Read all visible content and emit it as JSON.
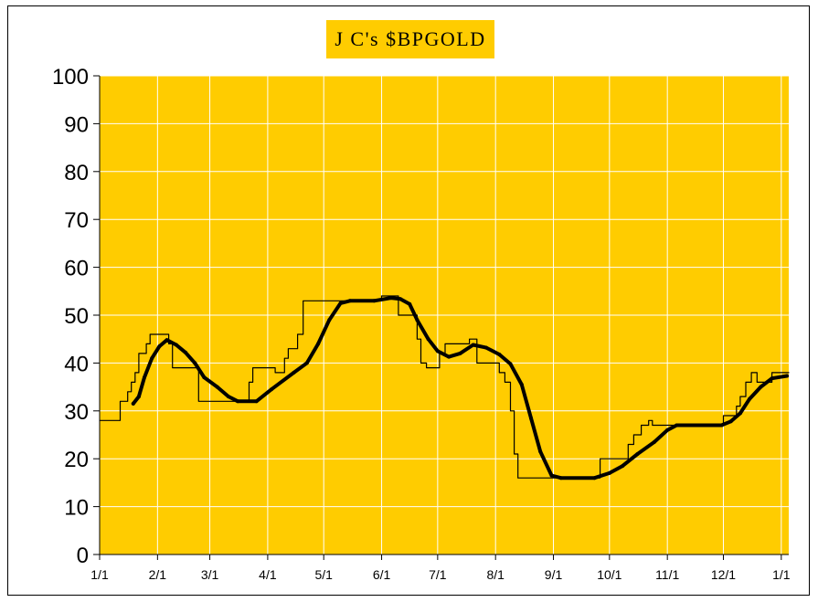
{
  "chart_data": {
    "type": "line",
    "title": "J C's $BPGOLD",
    "xlabel": "",
    "ylabel": "",
    "ylim": [
      0,
      100
    ],
    "xlim": [
      "2023-01-01",
      "2024-01-05"
    ],
    "yticks": [
      0,
      10,
      20,
      30,
      40,
      50,
      60,
      70,
      80,
      90,
      100
    ],
    "xticks": [
      {
        "date": "2023-01-01",
        "label": "1/1"
      },
      {
        "date": "2023-02-01",
        "label": "2/1"
      },
      {
        "date": "2023-03-01",
        "label": "3/1"
      },
      {
        "date": "2023-04-01",
        "label": "4/1"
      },
      {
        "date": "2023-05-01",
        "label": "5/1"
      },
      {
        "date": "2023-06-01",
        "label": "6/1"
      },
      {
        "date": "2023-07-01",
        "label": "7/1"
      },
      {
        "date": "2023-08-01",
        "label": "8/1"
      },
      {
        "date": "2023-09-01",
        "label": "9/1"
      },
      {
        "date": "2023-10-01",
        "label": "10/1"
      },
      {
        "date": "2023-11-01",
        "label": "11/1"
      },
      {
        "date": "2023-12-01",
        "label": "12/1"
      },
      {
        "date": "2024-01-01",
        "label": "1/1"
      }
    ],
    "grid": true,
    "legend": "none",
    "colors": {
      "plot_bg": "#ffcc00",
      "grid": "#ffffff",
      "line": "#000000",
      "title_bg": "#ffcc00"
    },
    "series": [
      {
        "style": "thin",
        "step": true,
        "points": [
          [
            "2023-01-01",
            28
          ],
          [
            "2023-01-11",
            28
          ],
          [
            "2023-01-12",
            32
          ],
          [
            "2023-01-15",
            32
          ],
          [
            "2023-01-16",
            34
          ],
          [
            "2023-01-18",
            36
          ],
          [
            "2023-01-20",
            38
          ],
          [
            "2023-01-22",
            42
          ],
          [
            "2023-01-25",
            42
          ],
          [
            "2023-01-26",
            44
          ],
          [
            "2023-01-28",
            46
          ],
          [
            "2023-02-05",
            46
          ],
          [
            "2023-02-07",
            44
          ],
          [
            "2023-02-09",
            39
          ],
          [
            "2023-02-20",
            39
          ],
          [
            "2023-02-23",
            32
          ],
          [
            "2023-03-20",
            32
          ],
          [
            "2023-03-22",
            36
          ],
          [
            "2023-03-24",
            39
          ],
          [
            "2023-04-01",
            39
          ],
          [
            "2023-04-05",
            38
          ],
          [
            "2023-04-10",
            41
          ],
          [
            "2023-04-12",
            43
          ],
          [
            "2023-04-15",
            43
          ],
          [
            "2023-04-17",
            46
          ],
          [
            "2023-04-20",
            53
          ],
          [
            "2023-05-31",
            53
          ],
          [
            "2023-06-01",
            54
          ],
          [
            "2023-06-08",
            54
          ],
          [
            "2023-06-10",
            50
          ],
          [
            "2023-06-18",
            50
          ],
          [
            "2023-06-20",
            45
          ],
          [
            "2023-06-22",
            40
          ],
          [
            "2023-06-25",
            39
          ],
          [
            "2023-06-28",
            39
          ],
          [
            "2023-07-02",
            42
          ],
          [
            "2023-07-05",
            44
          ],
          [
            "2023-07-16",
            44
          ],
          [
            "2023-07-18",
            45
          ],
          [
            "2023-07-22",
            40
          ],
          [
            "2023-07-30",
            40
          ],
          [
            "2023-08-03",
            38
          ],
          [
            "2023-08-06",
            36
          ],
          [
            "2023-08-09",
            30
          ],
          [
            "2023-08-11",
            21
          ],
          [
            "2023-08-13",
            16
          ],
          [
            "2023-09-25",
            16
          ],
          [
            "2023-09-26",
            20
          ],
          [
            "2023-10-09",
            20
          ],
          [
            "2023-10-11",
            23
          ],
          [
            "2023-10-14",
            25
          ],
          [
            "2023-10-18",
            27
          ],
          [
            "2023-10-22",
            28
          ],
          [
            "2023-10-24",
            27
          ],
          [
            "2023-11-30",
            27
          ],
          [
            "2023-12-01",
            29
          ],
          [
            "2023-12-06",
            29
          ],
          [
            "2023-12-08",
            31
          ],
          [
            "2023-12-10",
            33
          ],
          [
            "2023-12-13",
            36
          ],
          [
            "2023-12-16",
            38
          ],
          [
            "2023-12-19",
            36
          ],
          [
            "2023-12-26",
            36
          ],
          [
            "2023-12-27",
            38
          ],
          [
            "2024-01-05",
            38
          ]
        ]
      },
      {
        "style": "thick",
        "step": false,
        "points": [
          [
            "2023-01-19",
            31.5
          ],
          [
            "2023-01-22",
            33
          ],
          [
            "2023-01-25",
            37
          ],
          [
            "2023-01-29",
            41
          ],
          [
            "2023-02-02",
            43.5
          ],
          [
            "2023-02-06",
            44.8
          ],
          [
            "2023-02-11",
            43.8
          ],
          [
            "2023-02-16",
            42.2
          ],
          [
            "2023-02-21",
            40
          ],
          [
            "2023-02-26",
            37
          ],
          [
            "2023-03-05",
            35
          ],
          [
            "2023-03-11",
            33
          ],
          [
            "2023-03-16",
            32
          ],
          [
            "2023-03-26",
            32
          ],
          [
            "2023-04-03",
            34.5
          ],
          [
            "2023-04-15",
            38
          ],
          [
            "2023-04-22",
            40
          ],
          [
            "2023-04-28",
            44
          ],
          [
            "2023-05-04",
            49
          ],
          [
            "2023-05-10",
            52.5
          ],
          [
            "2023-05-15",
            53
          ],
          [
            "2023-05-28",
            53
          ],
          [
            "2023-06-06",
            53.6
          ],
          [
            "2023-06-11",
            53.4
          ],
          [
            "2023-06-16",
            52.3
          ],
          [
            "2023-06-20",
            49
          ],
          [
            "2023-06-26",
            45
          ],
          [
            "2023-07-01",
            42.5
          ],
          [
            "2023-07-07",
            41.3
          ],
          [
            "2023-07-13",
            42
          ],
          [
            "2023-07-20",
            43.8
          ],
          [
            "2023-07-27",
            43.2
          ],
          [
            "2023-08-03",
            41.8
          ],
          [
            "2023-08-09",
            39.8
          ],
          [
            "2023-08-15",
            35.5
          ],
          [
            "2023-08-20",
            28.5
          ],
          [
            "2023-08-25",
            21.5
          ],
          [
            "2023-08-31",
            16.5
          ],
          [
            "2023-09-05",
            16
          ],
          [
            "2023-09-23",
            16
          ],
          [
            "2023-10-01",
            17
          ],
          [
            "2023-10-08",
            18.5
          ],
          [
            "2023-10-16",
            21
          ],
          [
            "2023-10-25",
            23.5
          ],
          [
            "2023-11-01",
            26
          ],
          [
            "2023-11-06",
            27
          ],
          [
            "2023-11-30",
            27
          ],
          [
            "2023-12-05",
            27.8
          ],
          [
            "2023-12-10",
            29.5
          ],
          [
            "2023-12-15",
            32.5
          ],
          [
            "2023-12-21",
            35
          ],
          [
            "2023-12-27",
            36.8
          ],
          [
            "2024-01-04",
            37.3
          ]
        ]
      }
    ]
  }
}
